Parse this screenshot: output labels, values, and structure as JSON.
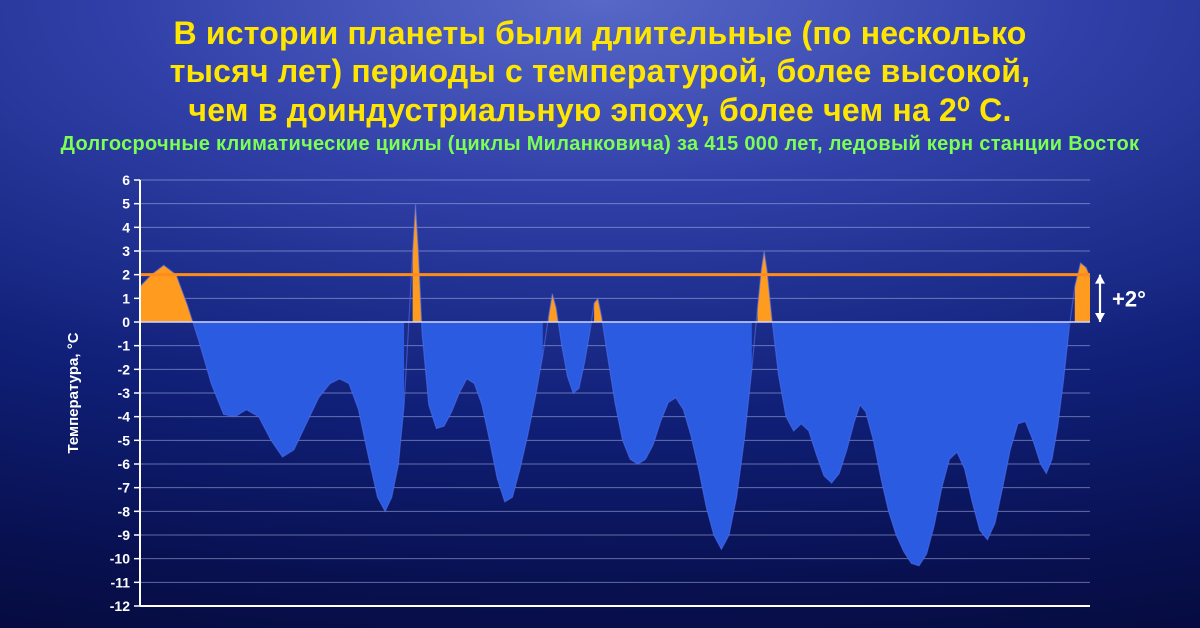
{
  "title_line1": "В истории планеты были длительные (по несколько",
  "title_line2": "тысяч лет) периоды с температурой, более высокой,",
  "title_line3": "чем в доиндустриальную эпоху, более чем на 2⁰ С.",
  "subtitle": "Долгосрочные климатические циклы (циклы Миланковича) за 415 000 лет, ледовый керн станции Восток",
  "chart": {
    "type": "area",
    "ylabel": "Температура, °C",
    "ylabel_color": "#ffffff",
    "ylabel_fontsize": 15,
    "threshold_label": "+2°",
    "threshold_label_color": "#ffffff",
    "threshold_label_fontsize": 22,
    "ylim": [
      -12,
      6
    ],
    "y_ticks": [
      6,
      5,
      4,
      3,
      2,
      1,
      0,
      -1,
      -2,
      -3,
      -4,
      -5,
      -6,
      -7,
      -8,
      -9,
      -10,
      -11,
      -12
    ],
    "tick_color": "#ffffff",
    "tick_fontsize": 14,
    "grid_color": "#aab4e6",
    "grid_width": 1,
    "axis_color": "#ffffff",
    "axis_width": 2,
    "zero_line_color": "#d0d8ff",
    "zero_line_width": 1.4,
    "threshold_value": 2,
    "threshold_line_color": "#ff8c1a",
    "threshold_line_width": 3,
    "fill_above_color": "#ff9b1f",
    "fill_below_color": "#2a5be0",
    "curve_edge_color": "#5070f0",
    "curve_edge_width": 1.2,
    "background_color": "transparent",
    "x_range": [
      0,
      1000
    ],
    "series": [
      [
        0,
        1.5
      ],
      [
        12,
        2.0
      ],
      [
        25,
        2.4
      ],
      [
        38,
        2.0
      ],
      [
        50,
        0.7
      ],
      [
        62,
        -0.8
      ],
      [
        75,
        -2.6
      ],
      [
        88,
        -3.9
      ],
      [
        100,
        -4.0
      ],
      [
        112,
        -3.7
      ],
      [
        125,
        -4.0
      ],
      [
        138,
        -5.0
      ],
      [
        150,
        -5.7
      ],
      [
        162,
        -5.4
      ],
      [
        175,
        -4.3
      ],
      [
        188,
        -3.2
      ],
      [
        200,
        -2.6
      ],
      [
        210,
        -2.4
      ],
      [
        220,
        -2.6
      ],
      [
        230,
        -3.7
      ],
      [
        240,
        -5.6
      ],
      [
        250,
        -7.4
      ],
      [
        258,
        -8.0
      ],
      [
        265,
        -7.4
      ],
      [
        272,
        -6.0
      ],
      [
        278,
        -3.5
      ],
      [
        283,
        0.0
      ],
      [
        287,
        3.0
      ],
      [
        290,
        5.0
      ],
      [
        293,
        3.0
      ],
      [
        297,
        -0.5
      ],
      [
        304,
        -3.5
      ],
      [
        312,
        -4.5
      ],
      [
        320,
        -4.4
      ],
      [
        328,
        -3.8
      ],
      [
        336,
        -3.0
      ],
      [
        344,
        -2.4
      ],
      [
        352,
        -2.6
      ],
      [
        360,
        -3.5
      ],
      [
        368,
        -5.0
      ],
      [
        376,
        -6.6
      ],
      [
        384,
        -7.6
      ],
      [
        392,
        -7.4
      ],
      [
        400,
        -6.2
      ],
      [
        408,
        -4.8
      ],
      [
        416,
        -3.2
      ],
      [
        424,
        -1.4
      ],
      [
        430,
        0.2
      ],
      [
        434,
        1.2
      ],
      [
        438,
        0.6
      ],
      [
        444,
        -1.0
      ],
      [
        450,
        -2.3
      ],
      [
        456,
        -3.0
      ],
      [
        462,
        -2.8
      ],
      [
        468,
        -1.7
      ],
      [
        474,
        -0.3
      ],
      [
        478,
        0.8
      ],
      [
        482,
        1.0
      ],
      [
        486,
        0.2
      ],
      [
        492,
        -1.4
      ],
      [
        500,
        -3.4
      ],
      [
        508,
        -5.0
      ],
      [
        516,
        -5.8
      ],
      [
        524,
        -6.0
      ],
      [
        532,
        -5.8
      ],
      [
        540,
        -5.2
      ],
      [
        548,
        -4.2
      ],
      [
        556,
        -3.4
      ],
      [
        564,
        -3.2
      ],
      [
        572,
        -3.7
      ],
      [
        580,
        -4.8
      ],
      [
        588,
        -6.2
      ],
      [
        596,
        -7.8
      ],
      [
        604,
        -9.0
      ],
      [
        612,
        -9.6
      ],
      [
        620,
        -9.0
      ],
      [
        628,
        -7.4
      ],
      [
        636,
        -5.0
      ],
      [
        644,
        -2.0
      ],
      [
        650,
        0.6
      ],
      [
        654,
        2.2
      ],
      [
        657,
        3.0
      ],
      [
        660,
        2.2
      ],
      [
        665,
        0.2
      ],
      [
        672,
        -2.2
      ],
      [
        680,
        -4.0
      ],
      [
        688,
        -4.6
      ],
      [
        696,
        -4.3
      ],
      [
        704,
        -4.6
      ],
      [
        712,
        -5.6
      ],
      [
        720,
        -6.5
      ],
      [
        728,
        -6.8
      ],
      [
        736,
        -6.4
      ],
      [
        744,
        -5.4
      ],
      [
        752,
        -4.2
      ],
      [
        758,
        -3.5
      ],
      [
        764,
        -3.8
      ],
      [
        772,
        -5.0
      ],
      [
        780,
        -6.6
      ],
      [
        788,
        -8.0
      ],
      [
        796,
        -9.0
      ],
      [
        804,
        -9.7
      ],
      [
        812,
        -10.2
      ],
      [
        820,
        -10.3
      ],
      [
        828,
        -9.8
      ],
      [
        836,
        -8.6
      ],
      [
        844,
        -7.0
      ],
      [
        852,
        -5.8
      ],
      [
        860,
        -5.5
      ],
      [
        868,
        -6.2
      ],
      [
        876,
        -7.6
      ],
      [
        884,
        -8.8
      ],
      [
        892,
        -9.2
      ],
      [
        900,
        -8.5
      ],
      [
        908,
        -7.0
      ],
      [
        916,
        -5.4
      ],
      [
        924,
        -4.3
      ],
      [
        932,
        -4.2
      ],
      [
        940,
        -5.0
      ],
      [
        948,
        -6.0
      ],
      [
        954,
        -6.4
      ],
      [
        960,
        -5.8
      ],
      [
        966,
        -4.4
      ],
      [
        972,
        -2.5
      ],
      [
        978,
        -0.3
      ],
      [
        984,
        1.5
      ],
      [
        990,
        2.5
      ],
      [
        996,
        2.3
      ],
      [
        1000,
        1.9
      ]
    ]
  }
}
